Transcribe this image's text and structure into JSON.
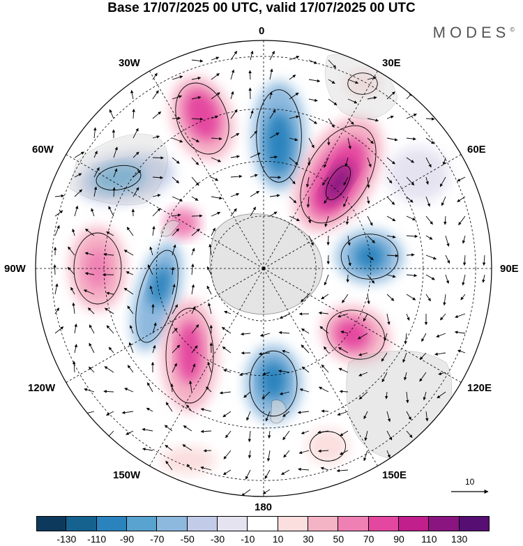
{
  "title": "Base 17/07/2025 00 UTC, valid 17/07/2025 00 UTC",
  "brand": "MODES",
  "brand_mark": "©",
  "longitude_labels": {
    "n": "0",
    "e30": "30E",
    "e60": "60E",
    "e90": "90E",
    "e120": "120E",
    "e150": "150E",
    "s": "180",
    "w150": "150W",
    "w120": "120W",
    "w90": "90W",
    "w60": "60W",
    "w30": "30W"
  },
  "reference_vector": {
    "label": "10",
    "value": 10
  },
  "colorbar": {
    "ticks": [
      "-130",
      "-110",
      "-90",
      "-70",
      "-50",
      "-30",
      "-10",
      "10",
      "30",
      "50",
      "70",
      "90",
      "110",
      "130"
    ],
    "colors": [
      "#0d3a5c",
      "#15628f",
      "#2b83bd",
      "#58a3cf",
      "#8eb9de",
      "#c2cce8",
      "#e6e3f1",
      "#ffffff",
      "#fbdede",
      "#f5b3c6",
      "#ef80b4",
      "#e4479f",
      "#c01f8c",
      "#8a1580",
      "#560e73"
    ]
  },
  "icon_names": [
    "reference-arrow-icon",
    "copyright-icon"
  ]
}
